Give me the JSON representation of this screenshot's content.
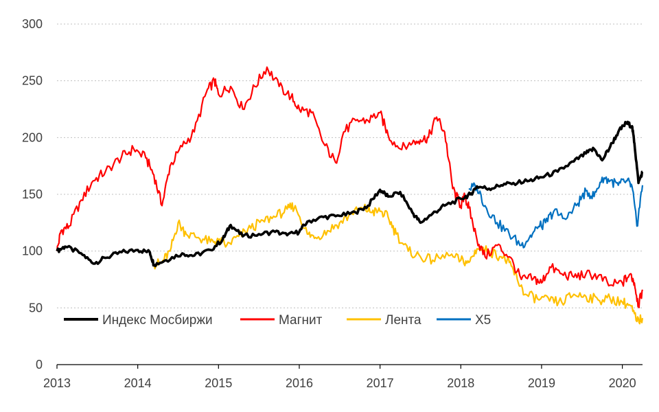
{
  "chart_data": {
    "type": "line",
    "title": "",
    "xlabel": "",
    "ylabel": "",
    "x_ticks": [
      "2013",
      "2014",
      "2015",
      "2016",
      "2017",
      "2018",
      "2019",
      "2020"
    ],
    "xlim": [
      2013.0,
      2020.25
    ],
    "y_ticks": [
      "0",
      "50",
      "100",
      "150",
      "200",
      "250",
      "300"
    ],
    "ylim": [
      0,
      300
    ],
    "grid": "horizontal dotted",
    "legend_position": "bottom-left",
    "series": [
      {
        "name": "Индекс Мосбиржи",
        "color": "#000000",
        "points": [
          [
            2013.0,
            100
          ],
          [
            2013.1,
            104
          ],
          [
            2013.3,
            98
          ],
          [
            2013.45,
            89
          ],
          [
            2013.6,
            94
          ],
          [
            2013.8,
            99
          ],
          [
            2014.0,
            101
          ],
          [
            2014.15,
            99
          ],
          [
            2014.2,
            88
          ],
          [
            2014.35,
            92
          ],
          [
            2014.55,
            98
          ],
          [
            2014.7,
            96
          ],
          [
            2014.9,
            101
          ],
          [
            2015.05,
            110
          ],
          [
            2015.15,
            123
          ],
          [
            2015.3,
            113
          ],
          [
            2015.5,
            115
          ],
          [
            2015.7,
            117
          ],
          [
            2015.85,
            114
          ],
          [
            2016.0,
            117
          ],
          [
            2016.1,
            126
          ],
          [
            2016.3,
            130
          ],
          [
            2016.5,
            131
          ],
          [
            2016.7,
            134
          ],
          [
            2016.85,
            140
          ],
          [
            2017.0,
            154
          ],
          [
            2017.1,
            148
          ],
          [
            2017.25,
            152
          ],
          [
            2017.4,
            134
          ],
          [
            2017.5,
            125
          ],
          [
            2017.65,
            133
          ],
          [
            2017.8,
            140
          ],
          [
            2018.0,
            146
          ],
          [
            2018.12,
            150
          ],
          [
            2018.2,
            157
          ],
          [
            2018.35,
            155
          ],
          [
            2018.5,
            158
          ],
          [
            2018.65,
            160
          ],
          [
            2018.85,
            162
          ],
          [
            2019.0,
            165
          ],
          [
            2019.2,
            170
          ],
          [
            2019.4,
            179
          ],
          [
            2019.55,
            186
          ],
          [
            2019.65,
            190
          ],
          [
            2019.75,
            180
          ],
          [
            2019.85,
            192
          ],
          [
            2019.95,
            205
          ],
          [
            2020.05,
            213
          ],
          [
            2020.12,
            210
          ],
          [
            2020.15,
            195
          ],
          [
            2020.2,
            160
          ],
          [
            2020.25,
            170
          ]
        ]
      },
      {
        "name": "Магнит",
        "color": "#ff0000",
        "points": [
          [
            2013.0,
            100
          ],
          [
            2013.05,
            118
          ],
          [
            2013.15,
            122
          ],
          [
            2013.3,
            145
          ],
          [
            2013.45,
            162
          ],
          [
            2013.6,
            170
          ],
          [
            2013.8,
            183
          ],
          [
            2013.95,
            190
          ],
          [
            2014.1,
            182
          ],
          [
            2014.2,
            167
          ],
          [
            2014.3,
            140
          ],
          [
            2014.4,
            175
          ],
          [
            2014.55,
            192
          ],
          [
            2014.7,
            205
          ],
          [
            2014.85,
            240
          ],
          [
            2014.95,
            250
          ],
          [
            2015.0,
            238
          ],
          [
            2015.15,
            245
          ],
          [
            2015.3,
            225
          ],
          [
            2015.45,
            245
          ],
          [
            2015.6,
            262
          ],
          [
            2015.75,
            245
          ],
          [
            2015.9,
            236
          ],
          [
            2016.0,
            225
          ],
          [
            2016.15,
            222
          ],
          [
            2016.3,
            195
          ],
          [
            2016.45,
            178
          ],
          [
            2016.55,
            205
          ],
          [
            2016.7,
            215
          ],
          [
            2016.85,
            215
          ],
          [
            2017.0,
            222
          ],
          [
            2017.1,
            202
          ],
          [
            2017.25,
            190
          ],
          [
            2017.4,
            195
          ],
          [
            2017.5,
            198
          ],
          [
            2017.6,
            200
          ],
          [
            2017.7,
            218
          ],
          [
            2017.8,
            205
          ],
          [
            2017.9,
            155
          ],
          [
            2018.0,
            140
          ],
          [
            2018.05,
            148
          ],
          [
            2018.1,
            138
          ],
          [
            2018.2,
            110
          ],
          [
            2018.3,
            95
          ],
          [
            2018.45,
            105
          ],
          [
            2018.6,
            95
          ],
          [
            2018.75,
            75
          ],
          [
            2018.9,
            76
          ],
          [
            2019.0,
            72
          ],
          [
            2019.1,
            86
          ],
          [
            2019.25,
            80
          ],
          [
            2019.4,
            77
          ],
          [
            2019.55,
            80
          ],
          [
            2019.7,
            78
          ],
          [
            2019.85,
            70
          ],
          [
            2020.0,
            72
          ],
          [
            2020.1,
            80
          ],
          [
            2020.15,
            72
          ],
          [
            2020.2,
            52
          ],
          [
            2020.25,
            66
          ]
        ]
      },
      {
        "name": "Лента",
        "color": "#ffc000",
        "points": [
          [
            2014.2,
            88
          ],
          [
            2014.3,
            90
          ],
          [
            2014.4,
            100
          ],
          [
            2014.5,
            125
          ],
          [
            2014.6,
            115
          ],
          [
            2014.75,
            112
          ],
          [
            2014.9,
            108
          ],
          [
            2015.0,
            110
          ],
          [
            2015.1,
            105
          ],
          [
            2015.25,
            113
          ],
          [
            2015.4,
            120
          ],
          [
            2015.55,
            127
          ],
          [
            2015.7,
            130
          ],
          [
            2015.85,
            137
          ],
          [
            2015.95,
            140
          ],
          [
            2016.1,
            115
          ],
          [
            2016.2,
            112
          ],
          [
            2016.35,
            118
          ],
          [
            2016.5,
            125
          ],
          [
            2016.65,
            133
          ],
          [
            2016.8,
            138
          ],
          [
            2016.9,
            134
          ],
          [
            2017.0,
            135
          ],
          [
            2017.1,
            130
          ],
          [
            2017.2,
            115
          ],
          [
            2017.35,
            100
          ],
          [
            2017.5,
            95
          ],
          [
            2017.65,
            92
          ],
          [
            2017.85,
            96
          ],
          [
            2018.0,
            92
          ],
          [
            2018.1,
            90
          ],
          [
            2018.2,
            102
          ],
          [
            2018.35,
            100
          ],
          [
            2018.5,
            95
          ],
          [
            2018.6,
            90
          ],
          [
            2018.7,
            75
          ],
          [
            2018.8,
            62
          ],
          [
            2018.95,
            58
          ],
          [
            2019.1,
            56
          ],
          [
            2019.25,
            55
          ],
          [
            2019.4,
            62
          ],
          [
            2019.55,
            60
          ],
          [
            2019.7,
            57
          ],
          [
            2019.85,
            58
          ],
          [
            2020.0,
            55
          ],
          [
            2020.1,
            52
          ],
          [
            2020.18,
            38
          ],
          [
            2020.25,
            41
          ]
        ]
      },
      {
        "name": "X5",
        "color": "#0070c0",
        "points": [
          [
            2018.1,
            155
          ],
          [
            2018.2,
            157
          ],
          [
            2018.3,
            140
          ],
          [
            2018.45,
            125
          ],
          [
            2018.6,
            115
          ],
          [
            2018.75,
            105
          ],
          [
            2018.85,
            112
          ],
          [
            2018.95,
            120
          ],
          [
            2019.05,
            125
          ],
          [
            2019.15,
            135
          ],
          [
            2019.3,
            128
          ],
          [
            2019.45,
            142
          ],
          [
            2019.55,
            153
          ],
          [
            2019.65,
            148
          ],
          [
            2019.75,
            165
          ],
          [
            2019.85,
            162
          ],
          [
            2019.95,
            158
          ],
          [
            2020.05,
            162
          ],
          [
            2020.12,
            157
          ],
          [
            2020.18,
            122
          ],
          [
            2020.25,
            158
          ]
        ]
      }
    ]
  }
}
